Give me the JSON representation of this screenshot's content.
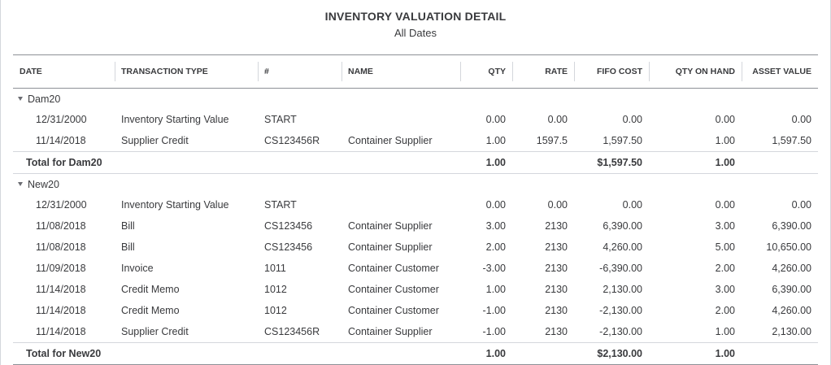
{
  "report": {
    "title": "INVENTORY VALUATION DETAIL",
    "subtitle": "All Dates"
  },
  "columns": [
    "DATE",
    "TRANSACTION TYPE",
    "#",
    "NAME",
    "QTY",
    "RATE",
    "FIFO COST",
    "QTY ON HAND",
    "ASSET VALUE"
  ],
  "groups": [
    {
      "name": "Dam20",
      "rows": [
        {
          "date": "12/31/2000",
          "type": "Inventory Starting Value",
          "num": "START",
          "name": "",
          "qty": "0.00",
          "rate": "0.00",
          "fifo": "0.00",
          "onhand": "0.00",
          "asset": "0.00"
        },
        {
          "date": "11/14/2018",
          "type": "Supplier Credit",
          "num": "CS123456R",
          "name": "Container Supplier",
          "qty": "1.00",
          "rate": "1597.5",
          "fifo": "1,597.50",
          "onhand": "1.00",
          "asset": "1,597.50"
        }
      ],
      "total": {
        "label": "Total for Dam20",
        "qty": "1.00",
        "fifo": "$1,597.50",
        "onhand": "1.00"
      }
    },
    {
      "name": "New20",
      "rows": [
        {
          "date": "12/31/2000",
          "type": "Inventory Starting Value",
          "num": "START",
          "name": "",
          "qty": "0.00",
          "rate": "0.00",
          "fifo": "0.00",
          "onhand": "0.00",
          "asset": "0.00"
        },
        {
          "date": "11/08/2018",
          "type": "Bill",
          "num": "CS123456",
          "name": "Container Supplier",
          "qty": "3.00",
          "rate": "2130",
          "fifo": "6,390.00",
          "onhand": "3.00",
          "asset": "6,390.00"
        },
        {
          "date": "11/08/2018",
          "type": "Bill",
          "num": "CS123456",
          "name": "Container Supplier",
          "qty": "2.00",
          "rate": "2130",
          "fifo": "4,260.00",
          "onhand": "5.00",
          "asset": "10,650.00"
        },
        {
          "date": "11/09/2018",
          "type": "Invoice",
          "num": "1011",
          "name": "Container Customer",
          "qty": "-3.00",
          "rate": "2130",
          "fifo": "-6,390.00",
          "onhand": "2.00",
          "asset": "4,260.00"
        },
        {
          "date": "11/14/2018",
          "type": "Credit Memo",
          "num": "1012",
          "name": "Container Customer",
          "qty": "1.00",
          "rate": "2130",
          "fifo": "2,130.00",
          "onhand": "3.00",
          "asset": "6,390.00"
        },
        {
          "date": "11/14/2018",
          "type": "Credit Memo",
          "num": "1012",
          "name": "Container Customer",
          "qty": "-1.00",
          "rate": "2130",
          "fifo": "-2,130.00",
          "onhand": "2.00",
          "asset": "4,260.00"
        },
        {
          "date": "11/14/2018",
          "type": "Supplier Credit",
          "num": "CS123456R",
          "name": "Container Supplier",
          "qty": "-1.00",
          "rate": "2130",
          "fifo": "-2,130.00",
          "onhand": "1.00",
          "asset": "2,130.00"
        }
      ],
      "total": {
        "label": "Total for New20",
        "qty": "1.00",
        "fifo": "$2,130.00",
        "onhand": "1.00"
      }
    }
  ]
}
